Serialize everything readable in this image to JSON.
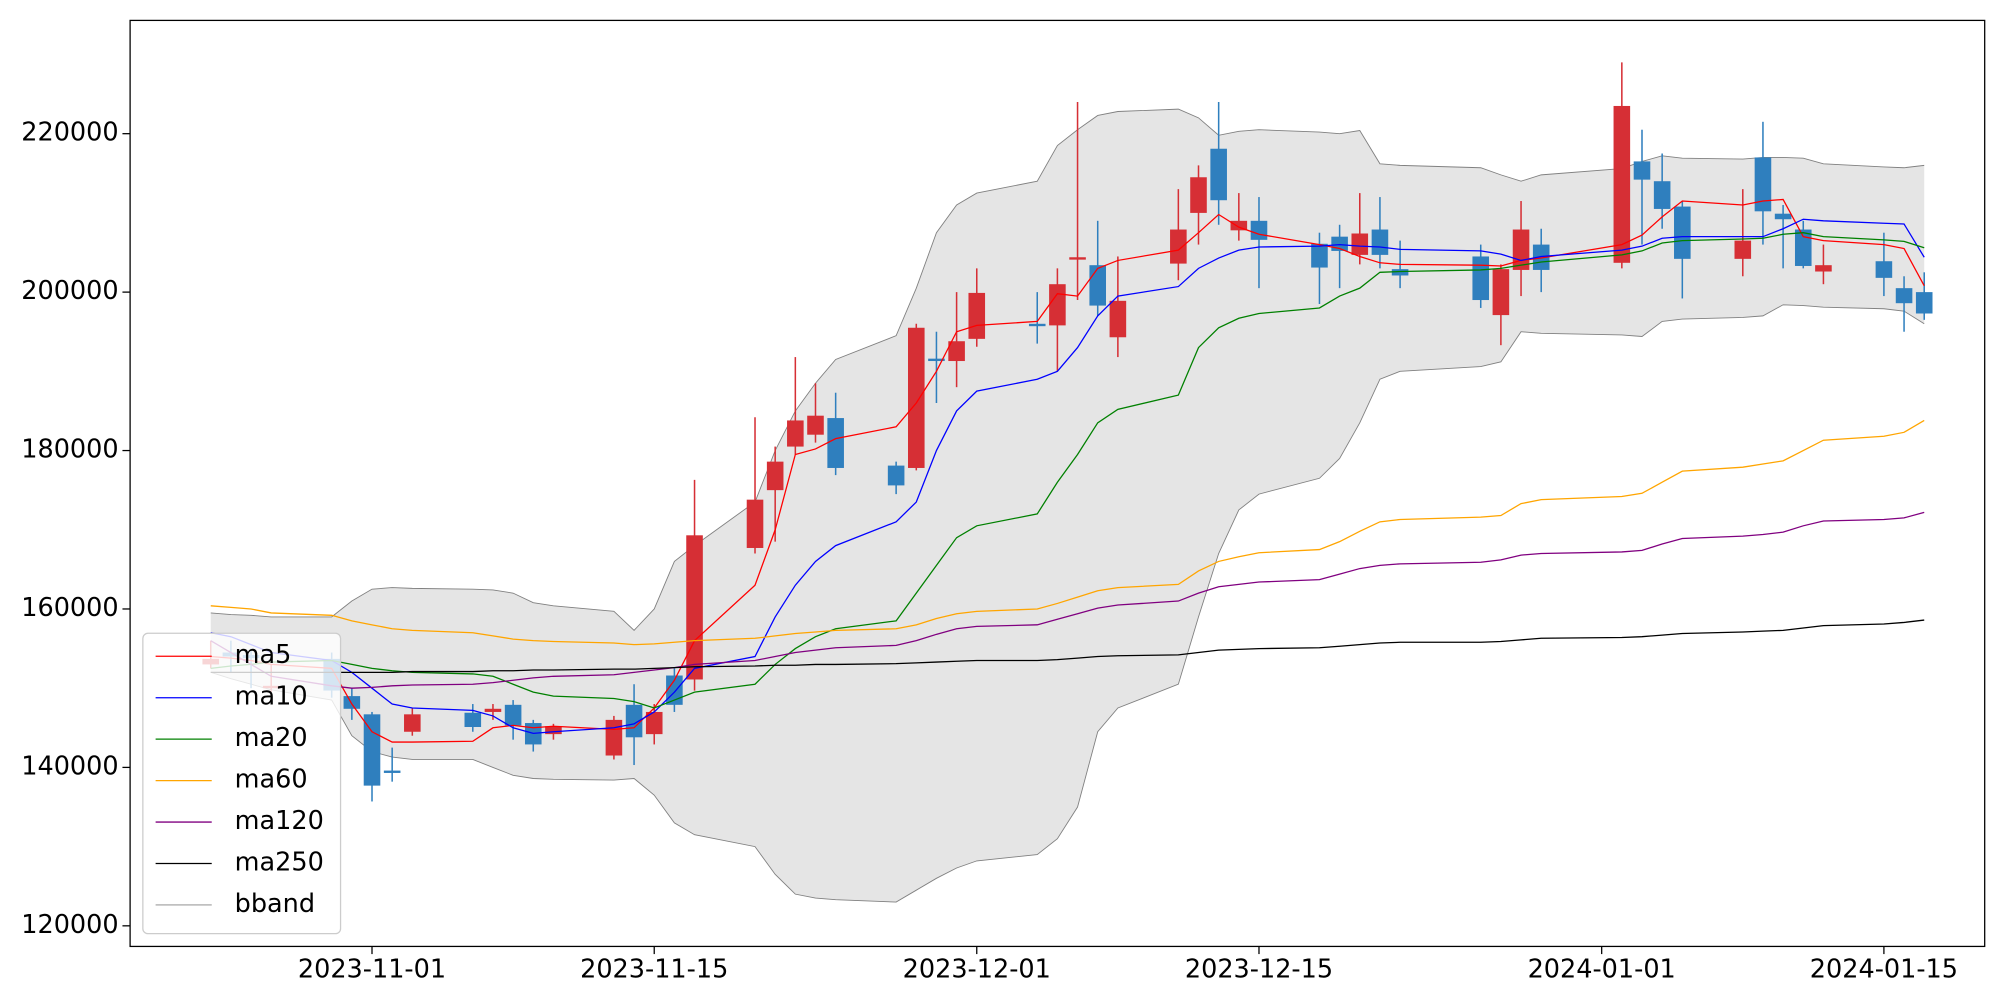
{
  "chart_data": {
    "type": "candlestick",
    "x": [
      "2023-10-24",
      "2023-10-25",
      "2023-10-26",
      "2023-10-27",
      "2023-10-30",
      "2023-10-31",
      "2023-11-01",
      "2023-11-02",
      "2023-11-03",
      "2023-11-06",
      "2023-11-07",
      "2023-11-08",
      "2023-11-09",
      "2023-11-10",
      "2023-11-13",
      "2023-11-14",
      "2023-11-15",
      "2023-11-16",
      "2023-11-17",
      "2023-11-20",
      "2023-11-21",
      "2023-11-22",
      "2023-11-23",
      "2023-11-24",
      "2023-11-27",
      "2023-11-28",
      "2023-11-29",
      "2023-11-30",
      "2023-12-01",
      "2023-12-04",
      "2023-12-05",
      "2023-12-06",
      "2023-12-07",
      "2023-12-08",
      "2023-12-11",
      "2023-12-12",
      "2023-12-13",
      "2023-12-14",
      "2023-12-15",
      "2023-12-18",
      "2023-12-19",
      "2023-12-20",
      "2023-12-21",
      "2023-12-22",
      "2023-12-26",
      "2023-12-27",
      "2023-12-28",
      "2023-12-29",
      "2024-01-02",
      "2024-01-03",
      "2024-01-04",
      "2024-01-05",
      "2024-01-08",
      "2024-01-09",
      "2024-01-10",
      "2024-01-11",
      "2024-01-12",
      "2024-01-15",
      "2024-01-16",
      "2024-01-17"
    ],
    "open": [
      153000,
      154500,
      154200,
      150000,
      153700,
      149000,
      146700,
      139600,
      144500,
      146900,
      147000,
      147900,
      145600,
      144200,
      141500,
      147900,
      144200,
      151600,
      151100,
      167700,
      175000,
      180500,
      182000,
      184100,
      178100,
      177800,
      191600,
      191300,
      194100,
      196000,
      195800,
      204100,
      203400,
      194300,
      203600,
      210000,
      218100,
      207800,
      209000,
      206100,
      207000,
      204700,
      207900,
      202900,
      204500,
      197100,
      202800,
      206000,
      203700,
      216500,
      214000,
      210800,
      204200,
      217000,
      209900,
      207900,
      202600,
      203900,
      200500,
      200000
    ],
    "high": [
      156000,
      156000,
      155000,
      153000,
      154500,
      150000,
      147000,
      142500,
      147500,
      148000,
      148000,
      148500,
      146000,
      145500,
      146500,
      150500,
      148000,
      152500,
      176300,
      184200,
      180500,
      191800,
      188500,
      187300,
      178600,
      196000,
      195000,
      200000,
      203000,
      200000,
      203000,
      224000,
      209000,
      204500,
      213000,
      216000,
      224000,
      212500,
      212000,
      207500,
      208500,
      212500,
      212000,
      206500,
      206000,
      203500,
      211500,
      208000,
      229000,
      220500,
      217500,
      211500,
      213000,
      221500,
      211000,
      209000,
      206000,
      207500,
      202000,
      202500
    ],
    "low": [
      152500,
      152000,
      150000,
      149500,
      148800,
      146000,
      135700,
      138200,
      144000,
      144500,
      146000,
      143500,
      142000,
      143500,
      141000,
      140300,
      142900,
      147000,
      149700,
      167000,
      168500,
      179500,
      181000,
      176900,
      174500,
      177500,
      186000,
      188000,
      193100,
      193500,
      190000,
      199000,
      197000,
      191800,
      201500,
      206000,
      208500,
      206500,
      200500,
      198500,
      200500,
      203500,
      203000,
      200500,
      198000,
      193300,
      199500,
      200000,
      203000,
      206000,
      208000,
      199200,
      202000,
      206000,
      203000,
      203000,
      201000,
      199500,
      195000,
      196500
    ],
    "close": [
      153700,
      154000,
      153800,
      150300,
      149700,
      147400,
      137700,
      139300,
      146700,
      145100,
      147400,
      145300,
      142900,
      145200,
      146000,
      143800,
      147000,
      147900,
      169300,
      173800,
      178600,
      183800,
      184400,
      177800,
      175600,
      195500,
      191300,
      193800,
      199900,
      195700,
      201000,
      204400,
      198300,
      198900,
      207900,
      214500,
      211600,
      209000,
      206600,
      203100,
      205200,
      207400,
      204700,
      202100,
      199000,
      202900,
      207900,
      202800,
      223500,
      214200,
      210500,
      204200,
      206500,
      210200,
      209200,
      203300,
      203400,
      201800,
      198600,
      197300
    ],
    "up_color": "#d62f35",
    "down_color": "#2f7fbe",
    "series": [
      {
        "name": "ma5",
        "color": "#ff0000",
        "values": [
          154000,
          153800,
          153500,
          153000,
          152500,
          148000,
          144500,
          143200,
          143200,
          143300,
          145000,
          145300,
          145000,
          145200,
          144800,
          145000,
          147500,
          151000,
          156000,
          163000,
          170000,
          179500,
          180200,
          181500,
          183000,
          186000,
          190000,
          195000,
          195800,
          196300,
          199800,
          199500,
          203000,
          204000,
          205300,
          207500,
          209800,
          208200,
          207300,
          206000,
          205500,
          204500,
          203700,
          203500,
          203400,
          203300,
          204000,
          204300,
          206000,
          207200,
          209500,
          211500,
          211000,
          211500,
          211700,
          207000,
          206500,
          206000,
          205500,
          200800
        ]
      },
      {
        "name": "ma10",
        "color": "#0000ff",
        "values": [
          157000,
          156500,
          155500,
          154500,
          153500,
          152000,
          150000,
          148000,
          147500,
          147200,
          146500,
          145000,
          144300,
          144500,
          145000,
          145500,
          147000,
          149500,
          152500,
          154000,
          159000,
          163000,
          166000,
          168000,
          171000,
          173500,
          180000,
          185000,
          187500,
          189000,
          190000,
          193000,
          197000,
          199500,
          200700,
          203000,
          204300,
          205300,
          205700,
          205800,
          206000,
          205800,
          205700,
          205400,
          205200,
          204800,
          204000,
          204500,
          205300,
          205800,
          206800,
          207000,
          207000,
          207000,
          208000,
          209200,
          209000,
          208700,
          208600,
          204400
        ]
      },
      {
        "name": "ma20",
        "color": "#008000",
        "values": [
          152500,
          152800,
          153000,
          153300,
          153500,
          153000,
          152500,
          152200,
          152000,
          151800,
          151500,
          150500,
          149500,
          149000,
          148700,
          148300,
          147500,
          148500,
          149500,
          150500,
          153000,
          155000,
          156500,
          157500,
          158500,
          162000,
          165500,
          169000,
          170500,
          172000,
          176000,
          179500,
          183500,
          185200,
          187000,
          193000,
          195500,
          196700,
          197300,
          198000,
          199500,
          200500,
          202500,
          202600,
          202800,
          203000,
          203400,
          203800,
          204700,
          205200,
          206200,
          206500,
          206700,
          206800,
          207300,
          207500,
          207000,
          206600,
          206400,
          205600
        ]
      },
      {
        "name": "ma60",
        "color": "#ffa500",
        "values": [
          160400,
          160200,
          160000,
          159500,
          159200,
          158500,
          158000,
          157500,
          157300,
          157000,
          156600,
          156200,
          156000,
          155900,
          155700,
          155500,
          155600,
          155800,
          156000,
          156300,
          156600,
          156900,
          157100,
          157300,
          157500,
          158000,
          158800,
          159400,
          159700,
          160000,
          160700,
          161500,
          162300,
          162700,
          163100,
          164800,
          166000,
          166600,
          167100,
          167500,
          168500,
          169800,
          171000,
          171300,
          171600,
          171800,
          173300,
          173800,
          174200,
          174600,
          176000,
          177400,
          177900,
          178300,
          178700,
          180000,
          181300,
          181800,
          182300,
          183800
        ]
      },
      {
        "name": "ma120",
        "color": "#800080",
        "values": [
          156000,
          154500,
          153000,
          151500,
          150300,
          150000,
          150100,
          150300,
          150400,
          150500,
          150700,
          151000,
          151300,
          151500,
          151700,
          152000,
          152300,
          152600,
          153000,
          153500,
          154000,
          154500,
          154800,
          155100,
          155400,
          156000,
          156800,
          157500,
          157800,
          158000,
          158700,
          159400,
          160100,
          160500,
          161000,
          162000,
          162800,
          163100,
          163400,
          163700,
          164400,
          165100,
          165500,
          165700,
          165900,
          166200,
          166800,
          167000,
          167200,
          167400,
          168200,
          168900,
          169200,
          169400,
          169700,
          170500,
          171100,
          171300,
          171500,
          172200
        ]
      },
      {
        "name": "ma250",
        "color": "#000000",
        "values": [
          152000,
          152000,
          152000,
          152000,
          152000,
          152000,
          152000,
          152000,
          152100,
          152100,
          152200,
          152200,
          152300,
          152300,
          152400,
          152400,
          152500,
          152600,
          152700,
          152800,
          152900,
          152900,
          153000,
          153000,
          153100,
          153200,
          153300,
          153400,
          153500,
          153500,
          153600,
          153800,
          154000,
          154100,
          154200,
          154500,
          154800,
          154900,
          155000,
          155100,
          155300,
          155500,
          155700,
          155800,
          155800,
          155900,
          156100,
          156300,
          156400,
          156500,
          156700,
          156900,
          157100,
          157200,
          157300,
          157600,
          157900,
          158100,
          158300,
          158600
        ]
      }
    ],
    "band": {
      "name": "bband",
      "color": "#808080",
      "fill": "#e5e5e5",
      "upper": [
        159500,
        159300,
        159200,
        159000,
        159000,
        161000,
        162500,
        162700,
        162600,
        162500,
        162400,
        162000,
        160800,
        160400,
        159700,
        157300,
        160000,
        166000,
        168000,
        173500,
        180000,
        185000,
        188500,
        191500,
        194500,
        200500,
        207500,
        211000,
        212500,
        214000,
        218500,
        220500,
        222300,
        222800,
        223100,
        222000,
        219800,
        220300,
        220500,
        220200,
        220000,
        220400,
        216200,
        216000,
        215700,
        214800,
        214000,
        214800,
        215600,
        216500,
        217200,
        216900,
        216800,
        217000,
        217000,
        216900,
        216200,
        215800,
        215700,
        216000
      ],
      "lower": [
        152000,
        151200,
        150500,
        149800,
        148500,
        144000,
        142000,
        141300,
        141000,
        141000,
        140000,
        139000,
        138600,
        138500,
        138400,
        138600,
        136500,
        133000,
        131500,
        130000,
        126500,
        124000,
        123500,
        123300,
        123000,
        124500,
        126000,
        127300,
        128200,
        129000,
        131000,
        135000,
        144500,
        147500,
        150500,
        159000,
        167000,
        172500,
        174500,
        176500,
        179000,
        183500,
        189000,
        190000,
        190600,
        191200,
        195000,
        194800,
        194600,
        194400,
        196300,
        196600,
        196800,
        197000,
        198400,
        198300,
        198100,
        197900,
        197600,
        196000
      ]
    },
    "xlim": [
      "2023-10-20",
      "2024-01-20"
    ],
    "xticks": [
      "2023-11-01",
      "2023-11-15",
      "2023-12-01",
      "2023-12-15",
      "2024-01-01",
      "2024-01-15"
    ],
    "ylim": [
      117400,
      234300
    ],
    "yticks": [
      120000,
      140000,
      160000,
      180000,
      200000,
      220000
    ],
    "legend": "lower left"
  }
}
